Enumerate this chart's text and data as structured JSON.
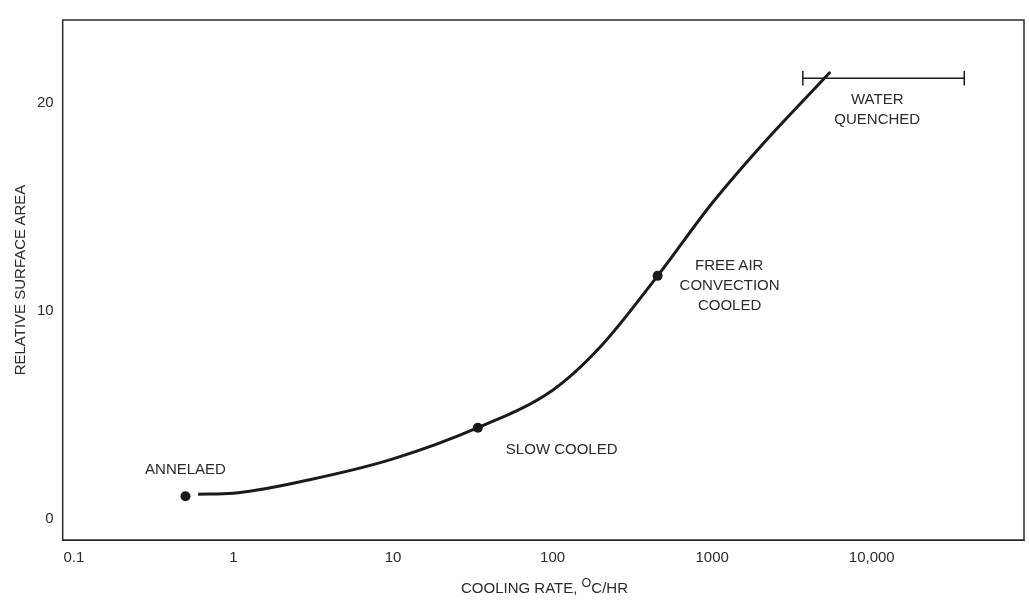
{
  "chart_data": {
    "type": "line",
    "xlabel": "COOLING RATE, $^{O}$C/HR",
    "ylabel": "RELATIVE SURFACE AREA",
    "log": "x",
    "xlim": [
      0.085,
      90000
    ],
    "ylim": [
      -1,
      24
    ],
    "xticks": [
      0.1,
      1,
      10,
      100,
      1000,
      {
        "value": 10000,
        "label": "10,000"
      }
    ],
    "yticks": [
      0,
      10,
      20
    ],
    "grid": false,
    "legend": false,
    "series": [
      {
        "color": "#1a1a1a",
        "marker": "none",
        "x": [
          0.6,
          1,
          3,
          10,
          34,
          100,
          200,
          455,
          1000,
          2000,
          5500
        ],
        "values": [
          1.2,
          1.25,
          1.9,
          2.9,
          4.4,
          6.2,
          8.3,
          11.7,
          15.2,
          17.9,
          21.5
        ]
      },
      {
        "type": "scatter",
        "color": "#1a1a1a",
        "marker": "circle",
        "x": [
          0.5,
          34,
          455
        ],
        "values": [
          1.1,
          4.4,
          11.7
        ]
      },
      {
        "color": "#1a1a1a",
        "marker": "none",
        "x": [
          3700,
          38000
        ],
        "values": [
          21.2,
          21.2
        ],
        "errors": [
          0.35,
          0.35
        ]
      }
    ],
    "annotations": [
      {
        "text": "ANNELAED",
        "x": 0.5,
        "y": 1.1
      },
      {
        "text": "SLOW COOLED",
        "x": 34,
        "y": 4.4
      },
      {
        "text": "FREE AIR\nCONVECTION\nCOOLED",
        "x": 455,
        "y": 11.7
      },
      {
        "text": "WATER\nQUENCHED",
        "x": 5500,
        "y": 21.2
      }
    ]
  }
}
